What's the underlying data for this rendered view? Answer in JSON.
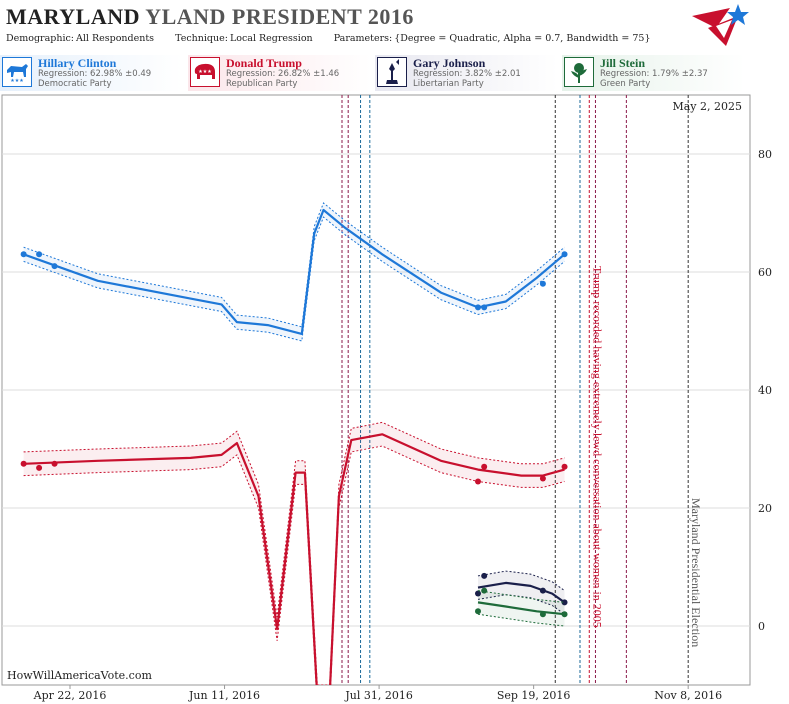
{
  "header": {
    "title_state": "MARYLAND",
    "title_rest": "YLAND PRESIDENT 2016",
    "demographic_label": "Demographic:",
    "demographic_value": "All Respondents",
    "technique_label": "Technique:",
    "technique_value": "Local Regression",
    "parameters_label": "Parameters:",
    "parameters_value": "{Degree = Quadratic, Alpha = 0.7, Bandwidth = 75}"
  },
  "candidates": [
    {
      "name": "Hillary Clinton",
      "regression": "Regression: 62.98% ±0.49",
      "party": "Democratic Party",
      "color": "#1e78d8",
      "icon": "donkey-icon"
    },
    {
      "name": "Donald Trump",
      "regression": "Regression: 26.82% ±1.46",
      "party": "Republican Party",
      "color": "#c8102e",
      "icon": "elephant-icon"
    },
    {
      "name": "Gary Johnson",
      "regression": "Regression: 3.82% ±2.01",
      "party": "Libertarian Party",
      "color": "#1a1f4a",
      "icon": "liberty-torch-icon"
    },
    {
      "name": "Jill Stein",
      "regression": "Regression: 1.79% ±2.37",
      "party": "Green Party",
      "color": "#1e6b3a",
      "icon": "rose-icon"
    }
  ],
  "chart_data": {
    "type": "line",
    "date_label": "May 2, 2025",
    "watermark": "HowWillAmericaVote.com",
    "x_ticks": [
      "Apr 22, 2016",
      "Jun 11, 2016",
      "Jul 31, 2016",
      "Sep 19, 2016",
      "Nov 8, 2016"
    ],
    "y_ticks": [
      0,
      20,
      40,
      60,
      80
    ],
    "ylim": [
      -10,
      90
    ],
    "xlim": [
      "2016-03-31",
      "2016-11-28"
    ],
    "grid": "horizontal",
    "annotations": [
      {
        "text": "Trump recorded having extremely lewd conversation about women in 2005",
        "date": "2016-10-07",
        "color": "#c8102e"
      },
      {
        "text": "Maryland Presidential Election",
        "date": "2016-11-08",
        "color": "#555555"
      }
    ],
    "event_lines": [
      {
        "date": "2016-07-19",
        "color": "#8b1a4a"
      },
      {
        "date": "2016-07-21",
        "color": "#8b1a4a"
      },
      {
        "date": "2016-07-25",
        "color": "#1a6a9a"
      },
      {
        "date": "2016-07-28",
        "color": "#1a6a9a"
      },
      {
        "date": "2016-09-26",
        "color": "#333333"
      },
      {
        "date": "2016-10-04",
        "color": "#1a6a9a"
      },
      {
        "date": "2016-10-07",
        "color": "#c8102e"
      },
      {
        "date": "2016-10-09",
        "color": "#8b1a4a"
      },
      {
        "date": "2016-10-19",
        "color": "#8b1a4a"
      },
      {
        "date": "2016-11-08",
        "color": "#333333"
      }
    ],
    "series": [
      {
        "name": "Hillary Clinton",
        "color": "#1e78d8",
        "band": 1.2,
        "line": [
          [
            "2016-04-07",
            63.0
          ],
          [
            "2016-05-01",
            58.5
          ],
          [
            "2016-05-31",
            55.5
          ],
          [
            "2016-06-10",
            54.5
          ],
          [
            "2016-06-15",
            51.5
          ],
          [
            "2016-06-25",
            51.0
          ],
          [
            "2016-07-06",
            49.5
          ],
          [
            "2016-07-10",
            66.5
          ],
          [
            "2016-07-13",
            70.5
          ],
          [
            "2016-07-20",
            67.5
          ],
          [
            "2016-08-01",
            63.0
          ],
          [
            "2016-08-20",
            56.5
          ],
          [
            "2016-09-01",
            54.0
          ],
          [
            "2016-09-10",
            55.0
          ],
          [
            "2016-09-20",
            59.0
          ],
          [
            "2016-09-29",
            63.0
          ]
        ],
        "points": [
          [
            "2016-04-07",
            63.0
          ],
          [
            "2016-04-12",
            63.0
          ],
          [
            "2016-04-17",
            61.0
          ],
          [
            "2016-09-01",
            54.0
          ],
          [
            "2016-09-03",
            54.0
          ],
          [
            "2016-09-22",
            58.0
          ],
          [
            "2016-09-29",
            63.0
          ]
        ]
      },
      {
        "name": "Donald Trump",
        "color": "#c8102e",
        "band": 2.0,
        "line": [
          [
            "2016-04-07",
            27.5
          ],
          [
            "2016-05-01",
            28.0
          ],
          [
            "2016-05-31",
            28.5
          ],
          [
            "2016-06-10",
            29.0
          ],
          [
            "2016-06-15",
            31.0
          ],
          [
            "2016-06-22",
            22.0
          ],
          [
            "2016-06-28",
            -0.5
          ],
          [
            "2016-07-04",
            26.0
          ],
          [
            "2016-07-07",
            26.0
          ],
          [
            "2016-07-11",
            -12.0
          ],
          [
            "2016-07-15",
            -12.0
          ],
          [
            "2016-07-18",
            22.0
          ],
          [
            "2016-07-22",
            31.5
          ],
          [
            "2016-08-01",
            32.5
          ],
          [
            "2016-08-20",
            28.0
          ],
          [
            "2016-09-01",
            26.5
          ],
          [
            "2016-09-15",
            25.5
          ],
          [
            "2016-09-22",
            25.5
          ],
          [
            "2016-09-29",
            26.5
          ]
        ],
        "points": [
          [
            "2016-04-07",
            27.5
          ],
          [
            "2016-04-12",
            26.8
          ],
          [
            "2016-04-17",
            27.5
          ],
          [
            "2016-09-01",
            24.5
          ],
          [
            "2016-09-03",
            27.0
          ],
          [
            "2016-09-22",
            25.0
          ],
          [
            "2016-09-29",
            27.0
          ]
        ]
      },
      {
        "name": "Gary Johnson",
        "color": "#1a1f4a",
        "band": 2.0,
        "line": [
          [
            "2016-09-01",
            6.5
          ],
          [
            "2016-09-10",
            7.3
          ],
          [
            "2016-09-18",
            6.8
          ],
          [
            "2016-09-25",
            5.5
          ],
          [
            "2016-09-29",
            4.0
          ]
        ],
        "points": [
          [
            "2016-09-01",
            5.5
          ],
          [
            "2016-09-03",
            8.5
          ],
          [
            "2016-09-22",
            6.0
          ],
          [
            "2016-09-29",
            4.0
          ]
        ]
      },
      {
        "name": "Jill Stein",
        "color": "#1e6b3a",
        "band": 2.0,
        "line": [
          [
            "2016-09-01",
            4.0
          ],
          [
            "2016-09-10",
            3.3
          ],
          [
            "2016-09-20",
            2.5
          ],
          [
            "2016-09-29",
            2.0
          ]
        ],
        "points": [
          [
            "2016-09-01",
            2.5
          ],
          [
            "2016-09-03",
            6.0
          ],
          [
            "2016-09-22",
            2.0
          ],
          [
            "2016-09-29",
            2.0
          ]
        ]
      }
    ]
  }
}
